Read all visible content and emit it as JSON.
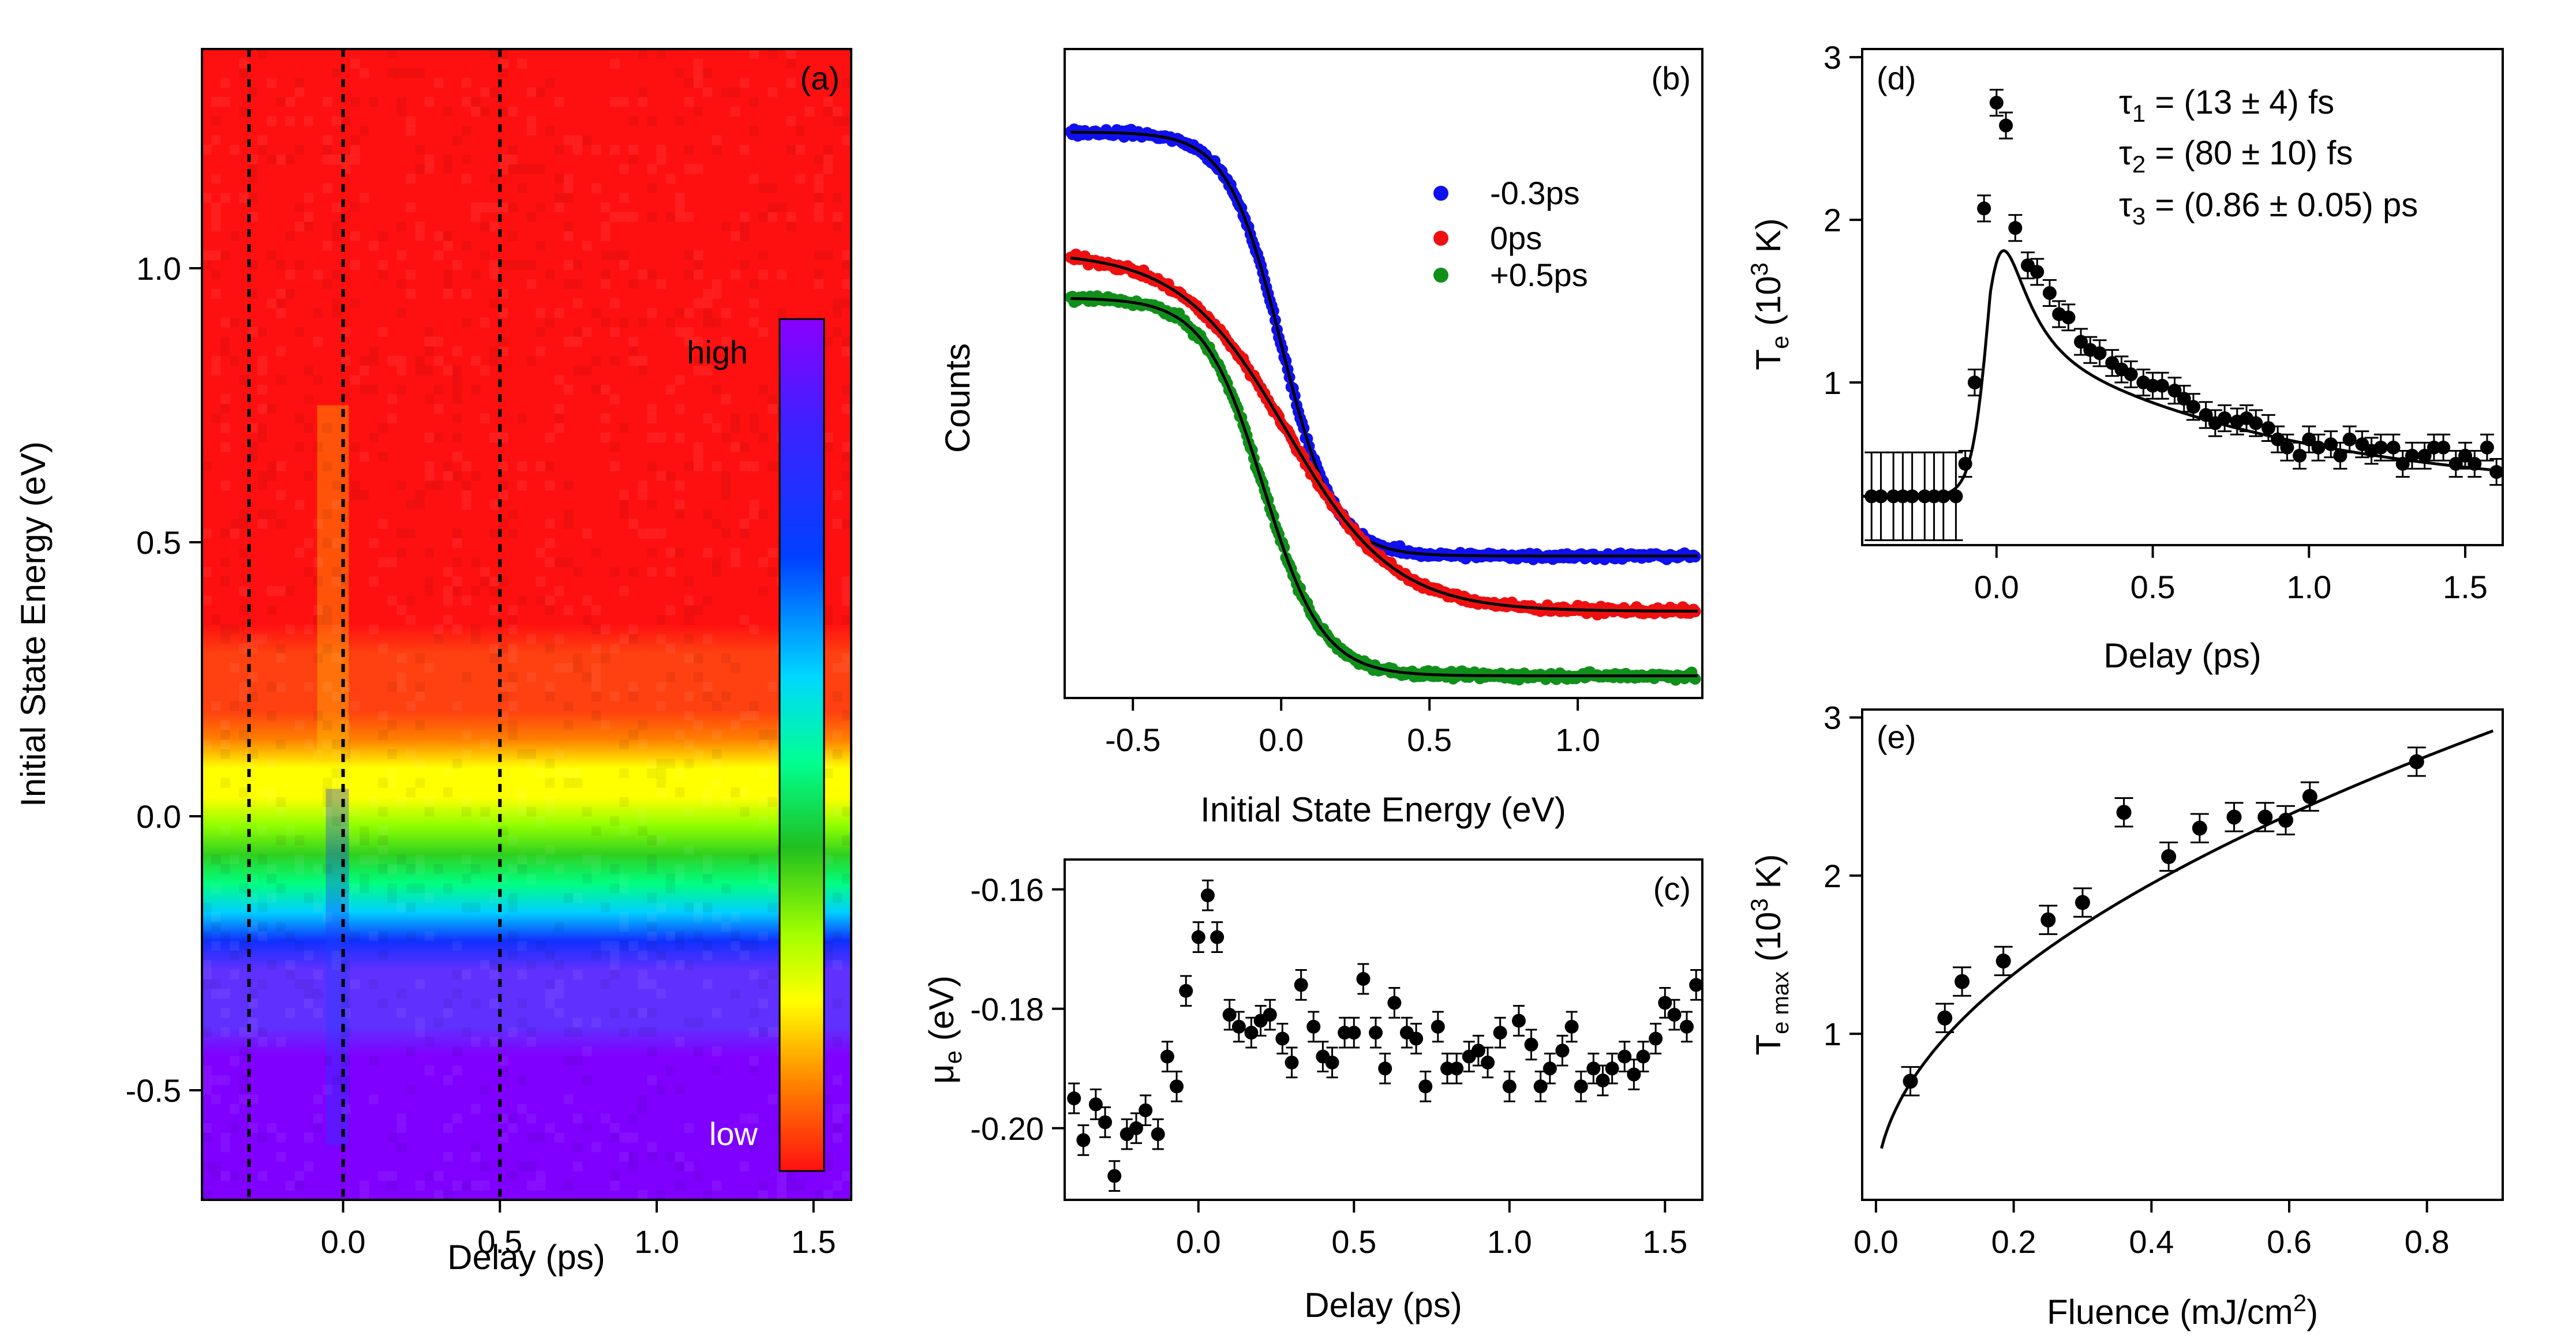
{
  "chart_data": [
    {
      "panel": "(a)",
      "type": "heatmap",
      "xlabel": "Delay (ps)",
      "ylabel": "Initial State Energy (eV)",
      "xlim": [
        -0.45,
        1.62
      ],
      "ylim": [
        -0.7,
        1.4
      ],
      "x_ticks": [
        0.0,
        0.5,
        1.0,
        1.5
      ],
      "x_tick_labels": [
        "0.0",
        "0.5",
        "1.0",
        "1.5"
      ],
      "y_ticks": [
        -0.5,
        0.0,
        0.5,
        1.0
      ],
      "y_tick_labels": [
        "-0.5",
        "0.0",
        "0.5",
        "1.0"
      ],
      "dashed_lines_x": [
        -0.3,
        0.0,
        0.5
      ],
      "colorbar": {
        "high": "high",
        "low": "low"
      },
      "colormap": [
        "#8000ff",
        "#6030ff",
        "#1030ff",
        "#00d0ff",
        "#00ff80",
        "#30d020",
        "#90ff00",
        "#ffff00",
        "#ff8000",
        "#ff4010",
        "#ff1010"
      ],
      "fermi_level_ev": -0.05,
      "width_ev": 0.13
    },
    {
      "panel": "(b)",
      "type": "line",
      "xlabel": "Initial State Energy (eV)",
      "ylabel": "Counts",
      "xlim": [
        -0.73,
        1.42
      ],
      "ylim": [
        -0.12,
        3.4
      ],
      "x_ticks": [
        -0.5,
        0.0,
        0.5,
        1.0
      ],
      "x_tick_labels": [
        "-0.5",
        "0.0",
        "0.5",
        "1.0"
      ],
      "series": [
        {
          "name": "-0.3ps",
          "color": "#1010ee",
          "offset": 0.65,
          "amp": 2.3,
          "mu": 0.0,
          "kT": 0.09
        },
        {
          "name": "0ps",
          "color": "#ee1010",
          "offset": 0.35,
          "amp": 1.95,
          "mu": 0.02,
          "kT": 0.18
        },
        {
          "name": "+0.5ps",
          "color": "#10901a",
          "offset": 0.0,
          "amp": 2.05,
          "mu": -0.06,
          "kT": 0.1
        }
      ]
    },
    {
      "panel": "(c)",
      "type": "scatter",
      "xlabel": "Delay (ps)",
      "ylabel": "μe (eV)",
      "xlim": [
        -0.43,
        1.62
      ],
      "ylim": [
        -0.212,
        -0.155
      ],
      "x_ticks": [
        0.0,
        0.5,
        1.0,
        1.5
      ],
      "x_tick_labels": [
        "0.0",
        "0.5",
        "1.0",
        "1.5"
      ],
      "y_ticks": [
        -0.2,
        -0.18,
        -0.16
      ],
      "y_tick_labels": [
        "-0.20",
        "-0.18",
        "-0.16"
      ],
      "x": [
        -0.4,
        -0.37,
        -0.33,
        -0.3,
        -0.27,
        -0.23,
        -0.2,
        -0.17,
        -0.13,
        -0.1,
        -0.07,
        -0.04,
        0.0,
        0.03,
        0.06,
        0.1,
        0.13,
        0.17,
        0.2,
        0.23,
        0.27,
        0.3,
        0.33,
        0.37,
        0.4,
        0.43,
        0.47,
        0.5,
        0.53,
        0.57,
        0.6,
        0.63,
        0.67,
        0.7,
        0.73,
        0.77,
        0.8,
        0.83,
        0.87,
        0.9,
        0.93,
        0.97,
        1.0,
        1.03,
        1.07,
        1.1,
        1.13,
        1.17,
        1.2,
        1.23,
        1.27,
        1.3,
        1.33,
        1.37,
        1.4,
        1.43,
        1.47,
        1.5,
        1.53,
        1.57,
        1.6
      ],
      "y": [
        -0.195,
        -0.202,
        -0.196,
        -0.199,
        -0.208,
        -0.201,
        -0.2,
        -0.197,
        -0.201,
        -0.188,
        -0.193,
        -0.177,
        -0.168,
        -0.161,
        -0.168,
        -0.181,
        -0.183,
        -0.184,
        -0.182,
        -0.181,
        -0.185,
        -0.189,
        -0.176,
        -0.183,
        -0.188,
        -0.189,
        -0.184,
        -0.184,
        -0.175,
        -0.184,
        -0.19,
        -0.179,
        -0.184,
        -0.185,
        -0.193,
        -0.183,
        -0.19,
        -0.19,
        -0.188,
        -0.187,
        -0.189,
        -0.184,
        -0.193,
        -0.182,
        -0.186,
        -0.193,
        -0.19,
        -0.187,
        -0.183,
        -0.193,
        -0.19,
        -0.192,
        -0.19,
        -0.188,
        -0.191,
        -0.188,
        -0.185,
        -0.179,
        -0.181,
        -0.183,
        -0.176
      ],
      "yerr": 0.0025
    },
    {
      "panel": "(d)",
      "type": "scatter",
      "xlabel": "Delay (ps)",
      "ylabel": "Te (10^3 K)",
      "xlim": [
        -0.43,
        1.62
      ],
      "ylim": [
        0.0,
        3.05
      ],
      "x_ticks": [
        0.0,
        0.5,
        1.0,
        1.5
      ],
      "x_tick_labels": [
        "0.0",
        "0.5",
        "1.0",
        "1.5"
      ],
      "y_ticks": [
        1,
        2,
        3
      ],
      "y_tick_labels": [
        "1",
        "2",
        "3"
      ],
      "annotations": [
        "τ1 = (13 ± 4) fs",
        "τ2 = (80 ± 10) fs",
        "τ3 = (0.86 ± 0.05) ps"
      ],
      "x": [
        -0.4,
        -0.37,
        -0.33,
        -0.3,
        -0.27,
        -0.23,
        -0.2,
        -0.17,
        -0.13,
        -0.1,
        -0.07,
        -0.04,
        0.0,
        0.03,
        0.06,
        0.1,
        0.13,
        0.17,
        0.2,
        0.23,
        0.27,
        0.3,
        0.33,
        0.37,
        0.4,
        0.43,
        0.47,
        0.5,
        0.53,
        0.57,
        0.6,
        0.63,
        0.67,
        0.7,
        0.73,
        0.77,
        0.8,
        0.83,
        0.87,
        0.9,
        0.93,
        0.97,
        1.0,
        1.03,
        1.07,
        1.1,
        1.13,
        1.17,
        1.2,
        1.23,
        1.27,
        1.3,
        1.33,
        1.37,
        1.4,
        1.43,
        1.47,
        1.5,
        1.53,
        1.57,
        1.6
      ],
      "y": [
        0.3,
        0.3,
        0.3,
        0.3,
        0.3,
        0.3,
        0.3,
        0.3,
        0.3,
        0.5,
        1.0,
        2.07,
        2.72,
        2.58,
        1.95,
        1.72,
        1.68,
        1.55,
        1.42,
        1.4,
        1.25,
        1.2,
        1.18,
        1.12,
        1.08,
        1.05,
        1.0,
        0.98,
        0.98,
        0.95,
        0.9,
        0.85,
        0.8,
        0.75,
        0.78,
        0.76,
        0.78,
        0.75,
        0.72,
        0.65,
        0.6,
        0.55,
        0.65,
        0.6,
        0.62,
        0.55,
        0.65,
        0.62,
        0.58,
        0.6,
        0.6,
        0.5,
        0.55,
        0.55,
        0.6,
        0.6,
        0.5,
        0.55,
        0.5,
        0.6,
        0.45
      ],
      "yerr_pre": 0.27,
      "yerr": 0.08,
      "fit": {
        "base": 0.3,
        "t0": -0.02,
        "rise_fs": 13,
        "A2": 1.45,
        "tau2_ps": 0.08,
        "A3": 1.05,
        "tau3_ps": 0.86
      }
    },
    {
      "panel": "(e)",
      "type": "scatter",
      "xlabel": "Fluence (mJ/cm2)",
      "ylabel": "Te max (10^3 K)",
      "xlim": [
        -0.02,
        0.91
      ],
      "ylim": [
        -0.05,
        3.05
      ],
      "x_ticks": [
        0.0,
        0.2,
        0.4,
        0.6,
        0.8
      ],
      "x_tick_labels": [
        "0.0",
        "0.2",
        "0.4",
        "0.6",
        "0.8"
      ],
      "y_ticks": [
        1,
        2,
        3
      ],
      "y_tick_labels": [
        "1",
        "2",
        "3"
      ],
      "x": [
        0.05,
        0.1,
        0.125,
        0.185,
        0.25,
        0.3,
        0.36,
        0.425,
        0.47,
        0.52,
        0.565,
        0.595,
        0.63,
        0.785
      ],
      "y": [
        0.7,
        1.1,
        1.33,
        1.46,
        1.72,
        1.83,
        2.4,
        2.12,
        2.3,
        2.37,
        2.37,
        2.35,
        2.5,
        2.72
      ],
      "yerr": 0.09,
      "fit": {
        "coefficient": 3.08,
        "exponent": 0.5
      }
    }
  ],
  "labels": {
    "a": {
      "panel": "(a)",
      "xlabel": "Delay (ps)",
      "ylabel": "Initial State Energy (eV)",
      "high": "high",
      "low": "low"
    },
    "b": {
      "panel": "(b)",
      "xlabel": "Initial State Energy (eV)",
      "ylabel": "Counts",
      "legend": [
        "-0.3ps",
        "0ps",
        "+0.5ps"
      ]
    },
    "c": {
      "panel": "(c)",
      "xlabel": "Delay (ps)",
      "ylabel_main": "μ",
      "ylabel_sub": "e",
      "ylabel_unit": " (eV)"
    },
    "d": {
      "panel": "(d)",
      "xlabel": "Delay (ps)",
      "ylabel_main": "T",
      "ylabel_sub": "e",
      "ylabel_rest": " (10",
      "ylabel_sup": "3",
      "ylabel_end": " K)",
      "tau_sym": "τ",
      "tau1_sub": "1",
      "tau1_val": " = (13 ± 4) fs",
      "tau2_sub": "2",
      "tau2_val": " = (80 ± 10) fs",
      "tau3_sub": "3",
      "tau3_val": " = (0.86 ± 0.05) ps"
    },
    "e": {
      "panel": "(e)",
      "xlabel_main": "Fluence (mJ/cm",
      "xlabel_sup": "2",
      "xlabel_end": ")",
      "ylabel_main": "T",
      "ylabel_sub": "e max",
      "ylabel_rest": " (10",
      "ylabel_sup": "3",
      "ylabel_end": " K)"
    }
  }
}
